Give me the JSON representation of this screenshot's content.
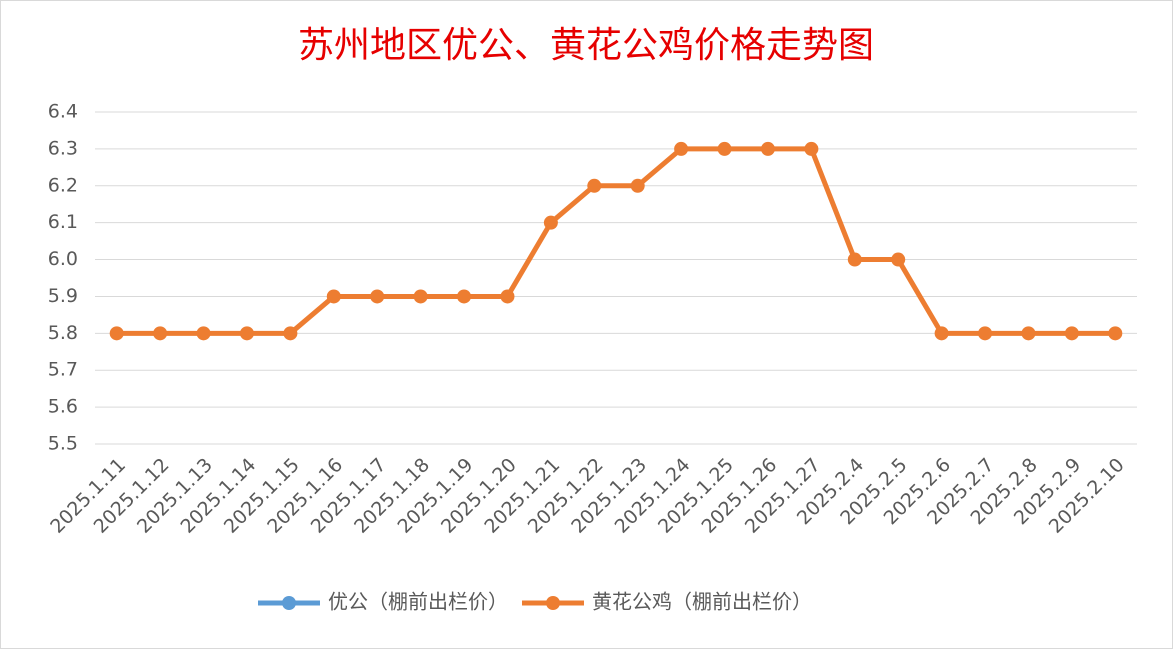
{
  "chart_data": {
    "type": "line",
    "title": "苏州地区优公、黄花公鸡价格走势图",
    "categories": [
      "2025.1.11",
      "2025.1.12",
      "2025.1.13",
      "2025.1.14",
      "2025.1.15",
      "2025.1.16",
      "2025.1.17",
      "2025.1.18",
      "2025.1.19",
      "2025.1.20",
      "2025.1.21",
      "2025.1.22",
      "2025.1.23",
      "2025.1.24",
      "2025.1.25",
      "2025.1.26",
      "2025.1.27",
      "2025.2.4",
      "2025.2.5",
      "2025.2.6",
      "2025.2.7",
      "2025.2.8",
      "2025.2.9",
      "2025.2.10"
    ],
    "series": [
      {
        "name": "优公（棚前出栏价）",
        "color": "#5b9bd5",
        "values": [
          null,
          null,
          null,
          null,
          null,
          null,
          null,
          null,
          null,
          null,
          null,
          null,
          null,
          null,
          null,
          null,
          null,
          null,
          null,
          null,
          null,
          null,
          null,
          null
        ]
      },
      {
        "name": "黄花公鸡（棚前出栏价）",
        "color": "#ed7d31",
        "values": [
          5.8,
          5.8,
          5.8,
          5.8,
          5.8,
          5.9,
          5.9,
          5.9,
          5.9,
          5.9,
          6.1,
          6.2,
          6.2,
          6.3,
          6.3,
          6.3,
          6.3,
          6.0,
          6.0,
          5.8,
          5.8,
          5.8,
          5.8,
          5.8
        ]
      }
    ],
    "ylim": [
      5.5,
      6.4
    ],
    "yticks": [
      5.5,
      5.6,
      5.7,
      5.8,
      5.9,
      {
        "value": 6,
        "label": "6.0"
      },
      6.1,
      6.2,
      6.3,
      6.4
    ],
    "grid": true,
    "legend": "bottom"
  }
}
